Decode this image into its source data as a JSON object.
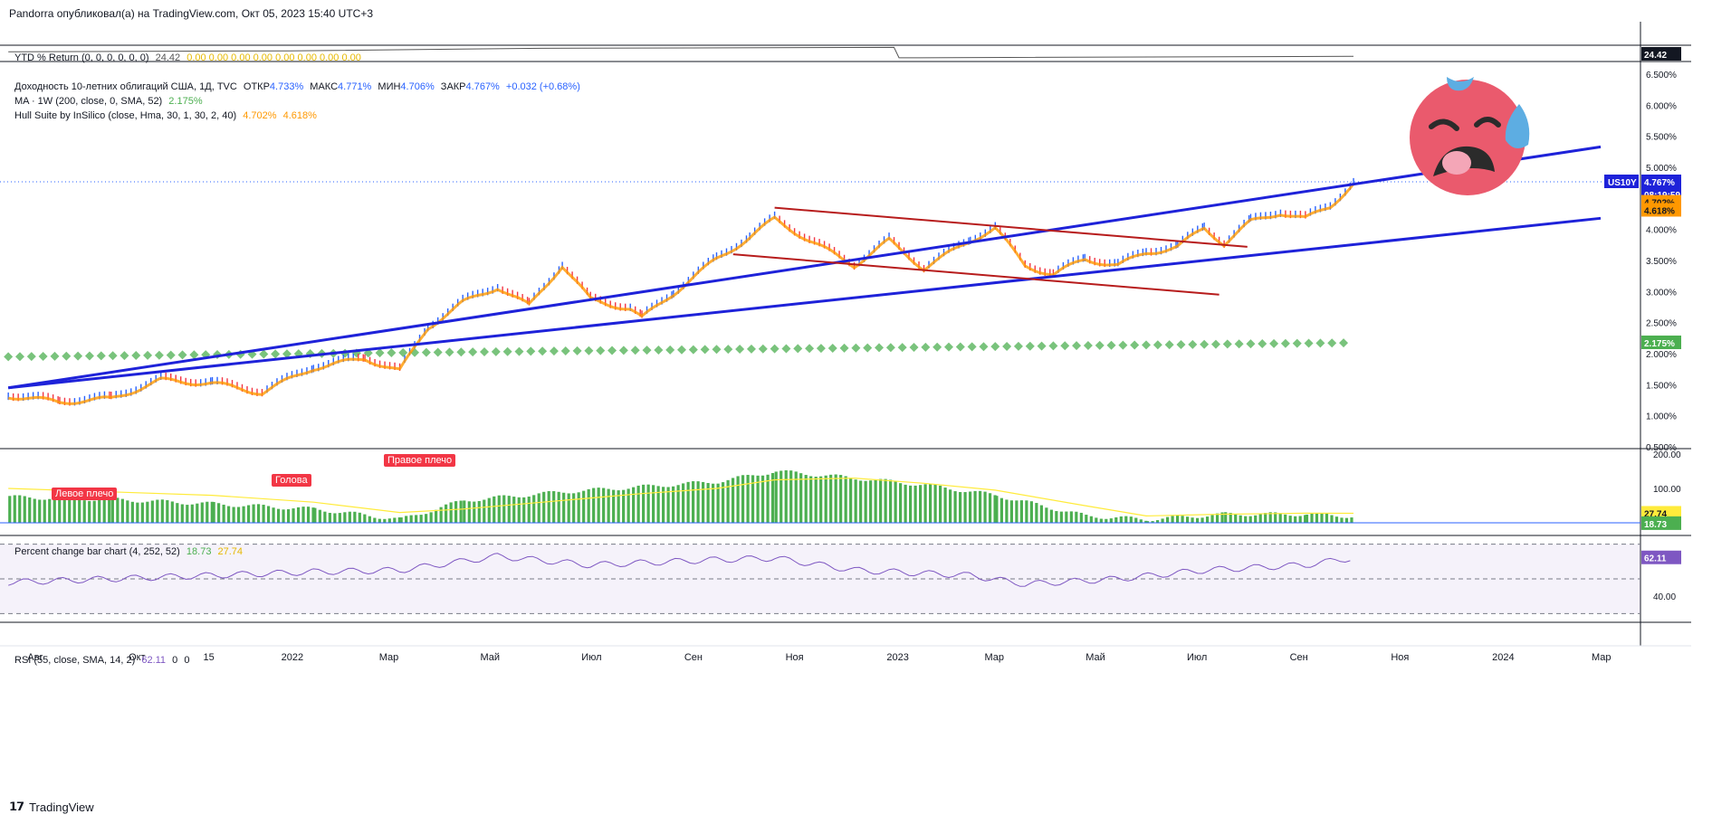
{
  "header": {
    "published": "Pandorra опубликовал(а) на TradingView.com, Окт 05, 2023 15:40 UTC+3"
  },
  "footer": {
    "brand": "TradingView"
  },
  "colors": {
    "up": "#2962ff",
    "down": "#f23645",
    "hull": "#ff9800",
    "trend": "#1e22d9",
    "channel": "#b71c1c",
    "ma": "#4caf50",
    "pct": "#4caf50",
    "pct_ma": "#ffeb3b",
    "rsi": "#7e57c2",
    "ytd": "#555555"
  },
  "legends": {
    "ytd": {
      "name": "YTD % Return (0, 0, 0, 0, 0, 0)",
      "value": "24.42",
      "zeros": "0.00  0.00  0.00  0.00  0.00  0.00  0.00  0.00"
    },
    "main": {
      "title": "Доходность 10-летних облигаций США, 1Д, TVC",
      "open_label": "ОТКР",
      "open": "4.733%",
      "high_label": "МАКС",
      "high": "4.771%",
      "low_label": "МИН",
      "low": "4.706%",
      "close_label": "ЗАКР",
      "close": "4.767%",
      "change": "+0.032 (+0.68%)"
    },
    "ma": {
      "name": "MA · 1W (200, close, 0, SMA, 52)",
      "value": "2.175%"
    },
    "hull": {
      "name": "Hull Suite by InSilico (close, Hma, 30, 1, 30, 2, 40)",
      "v1": "4.702%",
      "v2": "4.618%"
    },
    "pct": {
      "name": "Percent change bar chart (4, 252, 52)",
      "v1": "18.73",
      "v2": "27.74"
    },
    "rsi": {
      "name": "RSI (55, close, SMA, 14, 2)",
      "v1": "62.11",
      "v2": "0",
      "v3": "0"
    }
  },
  "annotations": {
    "left_shoulder": "Левое плечо",
    "head": "Голова",
    "right_shoulder": "Правое плечо"
  },
  "price_labels": {
    "symbol": "US10Y",
    "last": "4.767%",
    "countdown": "08:19:59",
    "hull1": "4.702%",
    "hull2": "4.618%",
    "ma": "2.175%",
    "ytd": "24.42",
    "pct1": "27.74",
    "pct2": "18.73",
    "rsi": "62.11"
  },
  "chart_data": [
    {
      "type": "line",
      "title": "Доходность 10-летних облигаций США, 1Д, TVC",
      "x": [
        "2021-07-15",
        "2021-08-15",
        "2021-09-15",
        "2021-10-15",
        "2021-11-15",
        "2021-12-15",
        "2022-01-15",
        "2022-02-15",
        "2022-03-08",
        "2022-03-25",
        "2022-04-15",
        "2022-05-06",
        "2022-05-25",
        "2022-06-14",
        "2022-07-01",
        "2022-07-25",
        "2022-08-01",
        "2022-08-20",
        "2022-09-15",
        "2022-10-05",
        "2022-10-20",
        "2022-11-10",
        "2022-12-07",
        "2022-12-28",
        "2023-01-18",
        "2023-02-15",
        "2023-03-02",
        "2023-03-20",
        "2023-04-06",
        "2023-04-25",
        "2023-05-15",
        "2023-06-01",
        "2023-06-20",
        "2023-07-06",
        "2023-07-18",
        "2023-08-03",
        "2023-08-21",
        "2023-09-05",
        "2023-09-20",
        "2023-10-04"
      ],
      "series": [
        {
          "values": [
            1.35,
            1.25,
            1.3,
            1.6,
            1.55,
            1.4,
            1.8,
            1.95,
            1.75,
            2.45,
            2.85,
            3.1,
            2.8,
            3.45,
            2.9,
            2.75,
            2.6,
            3.0,
            3.55,
            3.9,
            4.2,
            3.85,
            3.45,
            3.85,
            3.4,
            3.85,
            4.05,
            3.45,
            3.3,
            3.55,
            3.45,
            3.65,
            3.75,
            4.05,
            3.8,
            4.15,
            4.3,
            4.2,
            4.4,
            4.767
          ]
        }
      ],
      "ma_weekly_200": {
        "x_range": [
          "2021-07-15",
          "2023-10-04"
        ],
        "values_start_end": [
          1.95,
          2.175
        ]
      },
      "trendlines": [
        {
          "from": [
            "2021-07-15",
            1.45
          ],
          "to": [
            "2024-03-01",
            5.33
          ]
        },
        {
          "from": [
            "2021-07-15",
            1.45
          ],
          "to": [
            "2024-03-01",
            4.18
          ]
        },
        {
          "from": [
            "2022-10-20",
            4.35
          ],
          "to": [
            "2023-08-01",
            3.72
          ]
        },
        {
          "from": [
            "2022-09-25",
            3.6
          ],
          "to": [
            "2023-07-15",
            2.95
          ]
        }
      ],
      "ylim": [
        0.5,
        6.5
      ],
      "ytick_labels": [
        "0.500%",
        "1.000%",
        "1.500%",
        "2.000%",
        "2.500%",
        "3.000%",
        "3.500%",
        "4.000%",
        "4.500%",
        "5.000%",
        "5.500%",
        "6.000%",
        "6.500%"
      ],
      "xtick_labels": [
        "Авг",
        "Окт",
        "15",
        "2022",
        "Мар",
        "Май",
        "Июл",
        "Сен",
        "Ноя",
        "2023",
        "Мар",
        "Май",
        "Июл",
        "Сен",
        "Ноя",
        "2024",
        "Мар"
      ]
    },
    {
      "type": "line",
      "title": "YTD % Return (0, 0, 0, 0, 0, 0)",
      "x": [
        "2021-07-15",
        "2022-01-01",
        "2022-06-01",
        "2022-12-31",
        "2023-01-03",
        "2023-10-04"
      ],
      "values": [
        96,
        110,
        150,
        165,
        2,
        24.42
      ]
    },
    {
      "type": "bar",
      "title": "Percent change bar chart (4, 252, 52)",
      "x": [
        "2021-07-15",
        "2021-09-15",
        "2021-11-15",
        "2022-01-15",
        "2022-03-08",
        "2022-04-15",
        "2022-06-14",
        "2022-08-01",
        "2022-09-15",
        "2022-10-20",
        "2022-12-07",
        "2023-01-18",
        "2023-03-02",
        "2023-04-25",
        "2023-06-01",
        "2023-07-18",
        "2023-09-05",
        "2023-10-04"
      ],
      "values": [
        75,
        68,
        55,
        40,
        10,
        65,
        90,
        105,
        120,
        150,
        130,
        110,
        80,
        20,
        10,
        25,
        25,
        18.73
      ],
      "ma_values": [
        100,
        90,
        80,
        60,
        30,
        40,
        65,
        85,
        100,
        125,
        130,
        115,
        95,
        50,
        20,
        25,
        28,
        27.74
      ],
      "ylim": [
        0,
        200
      ],
      "ytick_labels": [
        "0.00",
        "100.00",
        "200.00"
      ]
    },
    {
      "type": "line",
      "title": "RSI (55, close, SMA, 14, 2)",
      "x": [
        "2021-07-15",
        "2021-09-15",
        "2021-11-15",
        "2022-01-15",
        "2022-03-08",
        "2022-05-06",
        "2022-07-01",
        "2022-09-15",
        "2022-10-20",
        "2022-12-07",
        "2023-02-15",
        "2023-03-20",
        "2023-05-15",
        "2023-07-06",
        "2023-09-05",
        "2023-10-04"
      ],
      "values": [
        48,
        50,
        52,
        54,
        55,
        63,
        58,
        61,
        62,
        55,
        52,
        47,
        50,
        55,
        58,
        62.11
      ],
      "ylim": [
        30,
        70
      ],
      "ytick_labels": [
        "40.00"
      ]
    }
  ]
}
